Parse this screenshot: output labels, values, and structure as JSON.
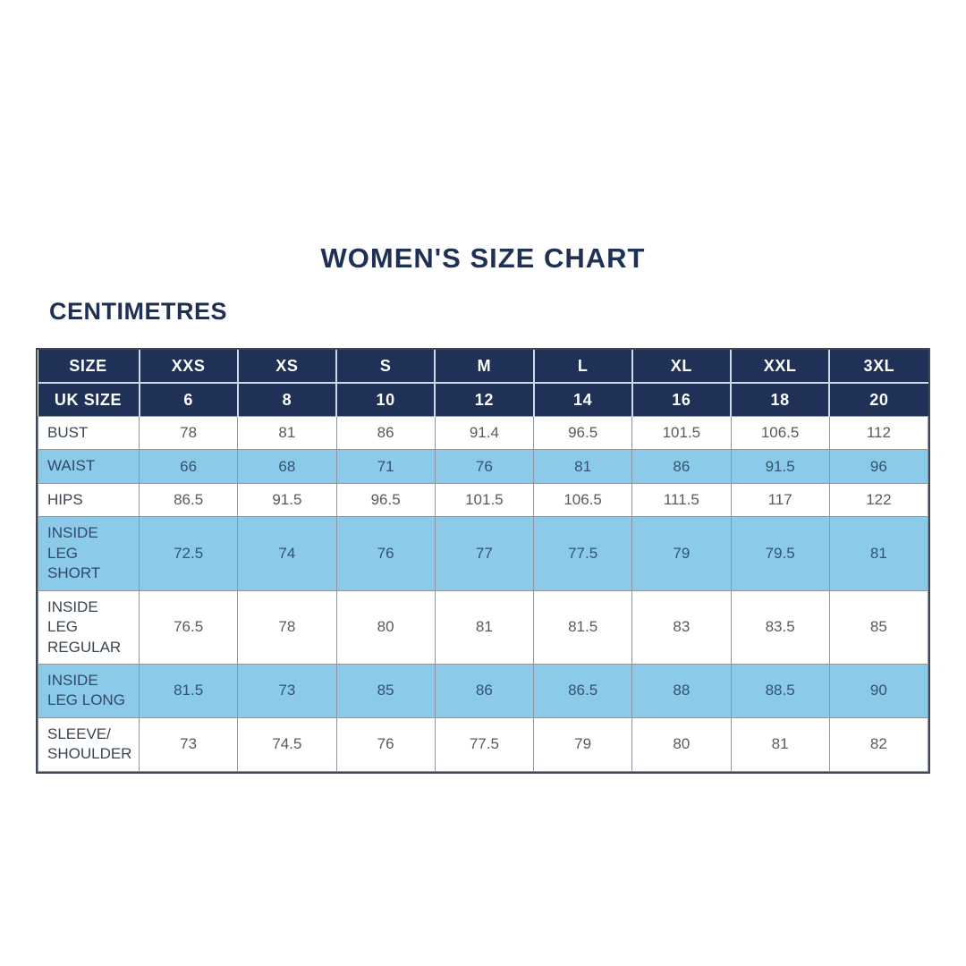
{
  "colors": {
    "navy": "#1f3156",
    "navy_text": "#1e3154",
    "light_blue": "#8bcbe9",
    "header_divider": "#ccd8e6",
    "cell_border": "#8e959e",
    "outer_border": "#3d4759",
    "data_text": "#565b61",
    "label_text": "#3a4552",
    "blue_row_text": "#33536e"
  },
  "chart_data": {
    "type": "table",
    "title": "WOMEN'S SIZE CHART",
    "unit": "CENTIMETRES",
    "header_rows": [
      {
        "label": "SIZE",
        "values": [
          "XXS",
          "XS",
          "S",
          "M",
          "L",
          "XL",
          "XXL",
          "3XL"
        ]
      },
      {
        "label": "UK SIZE",
        "values": [
          "6",
          "8",
          "10",
          "12",
          "14",
          "16",
          "18",
          "20"
        ]
      }
    ],
    "rows": [
      {
        "label": "BUST",
        "values": [
          "78",
          "81",
          "86",
          "91.4",
          "96.5",
          "101.5",
          "106.5",
          "112"
        ]
      },
      {
        "label": "WAIST",
        "values": [
          "66",
          "68",
          "71",
          "76",
          "81",
          "86",
          "91.5",
          "96"
        ]
      },
      {
        "label": "HIPS",
        "values": [
          "86.5",
          "91.5",
          "96.5",
          "101.5",
          "106.5",
          "111.5",
          "117",
          "122"
        ]
      },
      {
        "label": "INSIDE LEG SHORT",
        "values": [
          "72.5",
          "74",
          "76",
          "77",
          "77.5",
          "79",
          "79.5",
          "81"
        ]
      },
      {
        "label": "INSIDE LEG REGULAR",
        "values": [
          "76.5",
          "78",
          "80",
          "81",
          "81.5",
          "83",
          "83.5",
          "85"
        ]
      },
      {
        "label": "INSIDE LEG LONG",
        "values": [
          "81.5",
          "73",
          "85",
          "86",
          "86.5",
          "88",
          "88.5",
          "90"
        ]
      },
      {
        "label": "SLEEVE/ SHOULDER",
        "values": [
          "73",
          "74.5",
          "76",
          "77.5",
          "79",
          "80",
          "81",
          "82"
        ]
      }
    ]
  }
}
